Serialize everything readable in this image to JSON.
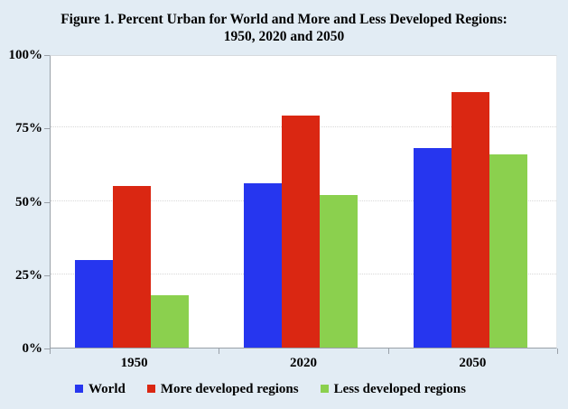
{
  "title": {
    "line1": "Figure 1. Percent Urban for World and More and Less Developed Regions:",
    "line2": "1950, 2020 and 2050"
  },
  "chart_data": {
    "type": "bar",
    "categories": [
      "1950",
      "2020",
      "2050"
    ],
    "series": [
      {
        "name": "World",
        "color": "#2636ef",
        "values": [
          30,
          56,
          68
        ]
      },
      {
        "name": "More developed regions",
        "color": "#da2712",
        "values": [
          55,
          79,
          87
        ]
      },
      {
        "name": "Less developed regions",
        "color": "#8bd04e",
        "values": [
          18,
          52,
          66
        ]
      }
    ],
    "ylim": [
      0,
      100
    ],
    "y_tick_labels": [
      "0%",
      "25%",
      "50%",
      "75%",
      "100%"
    ],
    "y_tick_values": [
      0,
      25,
      50,
      75,
      100
    ],
    "gridline_values": [
      25,
      50,
      75
    ],
    "xlabel": "",
    "ylabel": "",
    "grid": "horizontal-dotted",
    "legend_position": "bottom",
    "colors": {
      "page_background": "#e2ecf4",
      "plot_background": "#ffffff",
      "axis": "#99a0a8",
      "gridline": "#d8d8d8",
      "text": "#000000"
    }
  }
}
